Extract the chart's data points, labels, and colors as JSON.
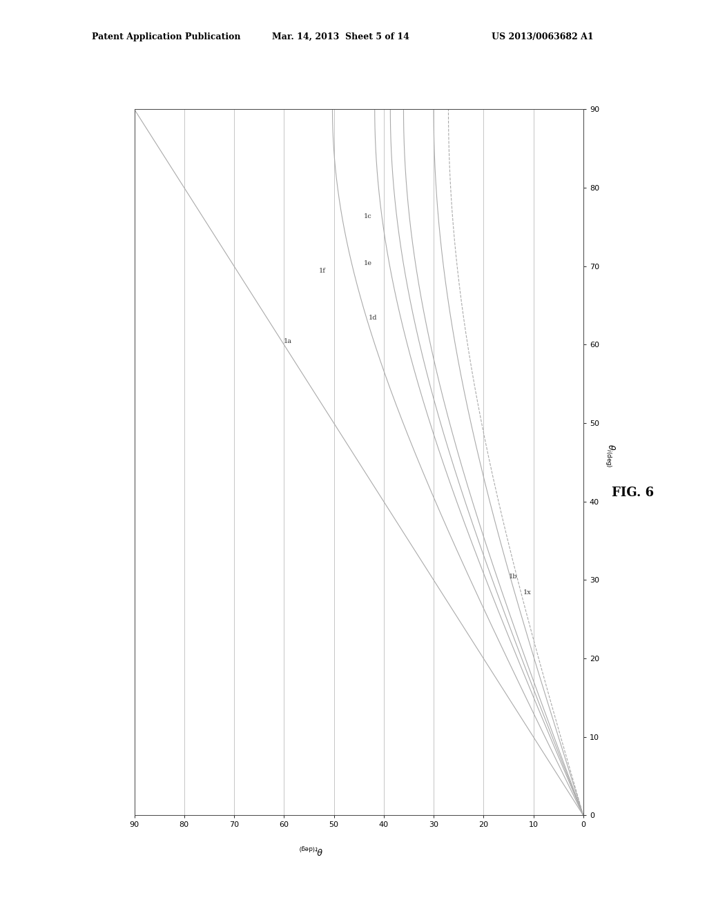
{
  "header_left": "Patent Application Publication",
  "header_mid": "Mar. 14, 2013  Sheet 5 of 14",
  "header_right": "US 2013/0063682 A1",
  "fig_label": "FIG. 6",
  "xlabel": "θ_{t(deg)}",
  "ylabel": "θ_{i(deg)}",
  "x_ticks": [
    0,
    10,
    20,
    30,
    40,
    50,
    60,
    70,
    80,
    90
  ],
  "y_ticks": [
    0,
    10,
    20,
    30,
    40,
    50,
    60,
    70,
    80,
    90
  ],
  "curves": [
    {
      "label": "1a",
      "n": 1.0,
      "style": "solid",
      "label_ti": 60,
      "label_tt": 60
    },
    {
      "label": "1f",
      "n": 1.3,
      "style": "solid",
      "label_ti": 69,
      "label_tt": 53
    },
    {
      "label": "1d",
      "n": 1.5,
      "style": "solid",
      "label_ti": 65,
      "label_tt": 43
    },
    {
      "label": "1e",
      "n": 1.6,
      "style": "solid",
      "label_ti": 70,
      "label_tt": 44
    },
    {
      "label": "1c",
      "n": 1.7,
      "style": "solid",
      "label_ti": 76,
      "label_tt": 45
    },
    {
      "label": "1b",
      "n": 2.0,
      "style": "solid",
      "label_ti": 30,
      "label_tt": 15
    },
    {
      "label": "1x",
      "n": 2.2,
      "style": "dashed",
      "label_ti": 28,
      "label_tt": 12
    }
  ],
  "line_color": "#aaaaaa",
  "line_color_dark": "#888888",
  "background_color": "#ffffff",
  "grid_color": "#999999",
  "spine_color": "#444444"
}
